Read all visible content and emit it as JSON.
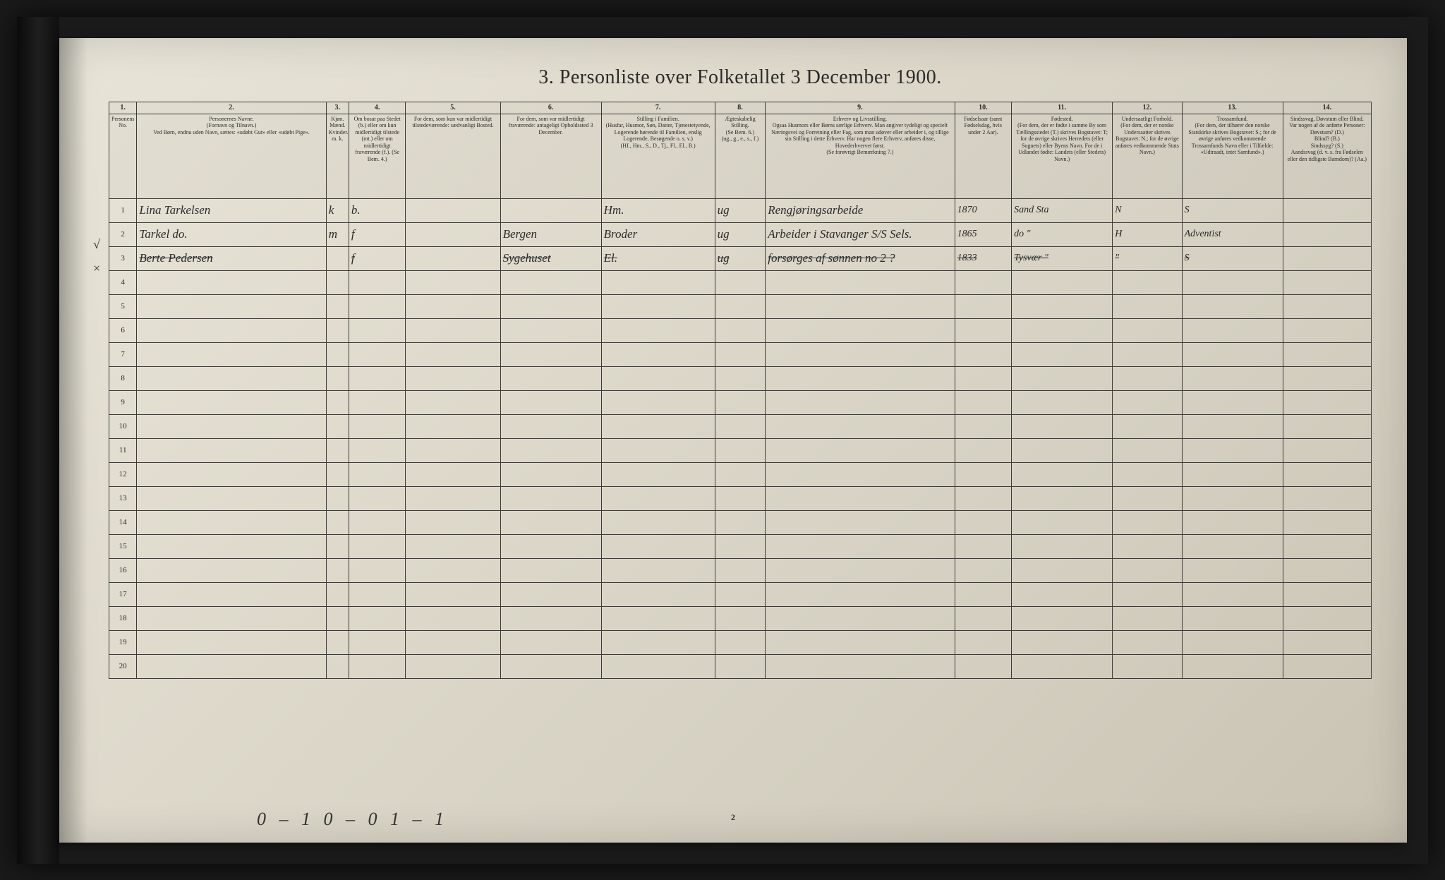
{
  "document": {
    "title": "3. Personliste over Folketallet 3 December 1900.",
    "page_number": "2",
    "footer_handwriting": "0 – 1   0 – 0   1 – 1",
    "background_color": "#e0dbce",
    "ink_color": "#2a2a2a"
  },
  "columns": {
    "numbers": [
      "1.",
      "2.",
      "3.",
      "4.",
      "5.",
      "6.",
      "7.",
      "8.",
      "9.",
      "10.",
      "11.",
      "12.",
      "13.",
      "14."
    ],
    "widths_pct": [
      2.2,
      15,
      1.8,
      4.5,
      7.5,
      8,
      9,
      4,
      15,
      4.5,
      8,
      5.5,
      8,
      7
    ],
    "headers": [
      "Personens No.",
      "Personernes Navne.\n(Fornavn og Tilnavn.)\nVed Børn, endnu uden Navn, sættes: «udøbt Gut» eller «udøbt Pige».",
      "Kjøn.\nMænd. Kvinder.\nm.  k.",
      "Om bosat paa Stedet (b.) eller om kun midlertidigt tilstede (mt.) eller om midlertidigt fraværende (f.). (Se Bem. 4.)",
      "For dem, som kun var midlertidigt tilstedeværende: sædvanligt Bosted.",
      "For dem, som var midlertidigt fraværende: antageligt Opholdssted 3 December.",
      "Stilling i Familien.\n(Husfar, Husmor, Søn, Datter, Tjenestetyende, Logerende hørende til Familien, enslig Logerende, Besøgende o. s. v.)\n(Hf., Hm., S., D., Tj., Fl., El., B.)",
      "Ægteskabelig Stilling.\n(Se Bem. 6.)\n(ug., g., e., s., f.)",
      "Erhverv og Livsstilling.\nOgsaa Husmors eller Børns særlige Erhverv. Man angiver tydeligt og specielt Næringsvei og Forretning eller Fag, som man udøver eller arbeider i, og tillige sin Stilling i dette Erhverv. Har nogen flere Erhverv, anføres disse, Hovederhvervet først.\n(Se forøvrigt Bemærkning 7.)",
      "Fødselsaar (samt Fødselsdag, hvis under 2 Aar).",
      "Fødested.\n(For dem, der er fødte i samme By som Tællingsstedet (T.) skrives Bogstavet: T; for de øvrige skrives Herredets (eller Sognets) eller Byens Navn. For de i Udlandet fødte: Landets (eller Stedets) Navn.)",
      "Undersaatligt Forhold.\n(For dem, der er norske Undersaatter skrives Bogstavet: N.; for de øvrige anføres vedkommende Stats Navn.)",
      "Trossamfund.\n(For dem, der tilhører den norske Statskirke skrives Bogstavet: S.; for de øvrige anføres vedkommende Trossamfunds Navn eller i Tilfælde: «Udtraadt, intet Samfund».)",
      "Sindssvag, Døvstum eller Blind.\nVar nogen af de anførte Personer:\nDøvstum? (D.)\nBlind? (B.)\nSindssyg? (S.)\nAandssvag (d. v. s. fra Fødselen eller den tidligste Barndom)? (Aa.)"
    ]
  },
  "rows": [
    {
      "no": "1",
      "margin": "",
      "name": "Lina Tarkelsen",
      "sex": "k",
      "status": "b.",
      "temp_present": "",
      "temp_absent": "",
      "family": "Hm.",
      "marital": "ug",
      "occupation": "Rengjøringsarbeide",
      "birth_year": "1870",
      "birthplace": "Sand Sta",
      "nationality": "N",
      "faith": "S",
      "disability": ""
    },
    {
      "no": "2",
      "margin": "√",
      "name": "Tarkel   do.",
      "sex": "m",
      "status": "f",
      "temp_present": "",
      "temp_absent": "Bergen",
      "family": "Broder",
      "marital": "ug",
      "occupation": "Arbeider i Stavanger S/S Sels.",
      "birth_year": "1865",
      "birthplace": "do  \"",
      "nationality": "H",
      "faith": "Adventist",
      "disability": ""
    },
    {
      "no": "3",
      "margin": "×",
      "name": "Berte Pedersen",
      "sex": "",
      "status": "f",
      "temp_present": "",
      "temp_absent": "Sygehuset",
      "family": "El.",
      "marital": "ug",
      "occupation": "forsørges af sønnen no 2 ?",
      "birth_year": "1833",
      "birthplace": "Tysvær \"",
      "nationality": "\"",
      "faith": "S",
      "disability": ""
    },
    {
      "no": "4"
    },
    {
      "no": "5"
    },
    {
      "no": "6"
    },
    {
      "no": "7"
    },
    {
      "no": "8"
    },
    {
      "no": "9"
    },
    {
      "no": "10"
    },
    {
      "no": "11"
    },
    {
      "no": "12"
    },
    {
      "no": "13"
    },
    {
      "no": "14"
    },
    {
      "no": "15"
    },
    {
      "no": "16"
    },
    {
      "no": "17"
    },
    {
      "no": "18"
    },
    {
      "no": "19"
    },
    {
      "no": "20"
    }
  ]
}
